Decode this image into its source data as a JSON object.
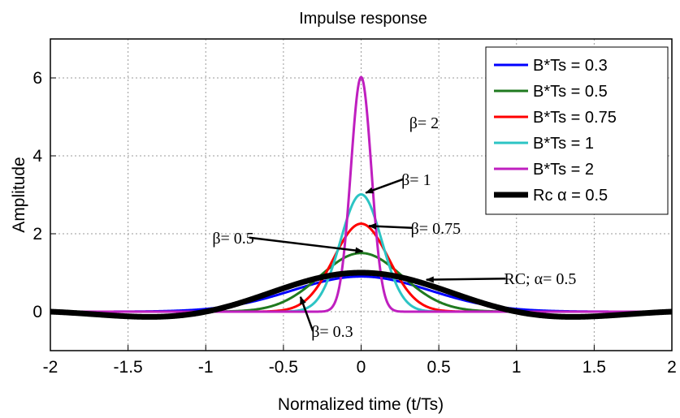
{
  "chart_data": {
    "type": "line",
    "title": "Impulse response",
    "xlabel": "Normalized time (t/Ts)",
    "ylabel": "Amplitude",
    "xlim": [
      -2,
      2
    ],
    "ylim": [
      -1,
      7
    ],
    "xticks": [
      -2,
      -1.5,
      -1,
      -0.5,
      0,
      0.5,
      1,
      1.5,
      2
    ],
    "xtick_labels": [
      "-2",
      "-1.5",
      "-1",
      "-0.5",
      "0",
      "0.5",
      "1",
      "1.5",
      "2"
    ],
    "yticks": [
      0,
      2,
      4,
      6
    ],
    "ytick_labels": [
      "0",
      "2",
      "4",
      "6"
    ],
    "grid": true,
    "legend_position": "top-right",
    "series": [
      {
        "name": "B*Ts = 0.3",
        "color": "#0000ff",
        "kind": "gaussian",
        "bts": 0.3,
        "width": 3
      },
      {
        "name": "B*Ts = 0.5",
        "color": "#1f7a1f",
        "kind": "gaussian",
        "bts": 0.5,
        "width": 3
      },
      {
        "name": "B*Ts = 0.75",
        "color": "#ff0000",
        "kind": "gaussian",
        "bts": 0.75,
        "width": 3
      },
      {
        "name": "B*Ts = 1",
        "color": "#2cc4c4",
        "kind": "gaussian",
        "bts": 1,
        "width": 3
      },
      {
        "name": "B*Ts = 2",
        "color": "#bf1fbf",
        "kind": "gaussian",
        "bts": 2,
        "width": 3
      },
      {
        "name": "Rc α = 0.5",
        "color": "#000000",
        "kind": "raised-cosine",
        "alpha": 0.5,
        "width": 7
      }
    ],
    "annotations": [
      {
        "text": "β= 2",
        "x": 0.32,
        "y": 4.85,
        "arrow": false
      },
      {
        "text": "β= 1",
        "x": 0.27,
        "y": 3.4,
        "arrow": true,
        "ax": 0.03,
        "ay": 3.05
      },
      {
        "text": "β= 0.75",
        "x": 0.33,
        "y": 2.15,
        "arrow": true,
        "ax": 0.05,
        "ay": 2.2
      },
      {
        "text": "β= 0.5",
        "x": -0.72,
        "y": 1.9,
        "arrow": true,
        "ax": 0.01,
        "ay": 1.55
      },
      {
        "text": "RC; α= 0.5",
        "x": 0.93,
        "y": 0.85,
        "arrow": true,
        "ax": 0.42,
        "ay": 0.82
      },
      {
        "text": "β= 0.3",
        "x": -0.31,
        "y": -0.5,
        "arrow": true,
        "ax": -0.39,
        "ay": 0.38
      }
    ]
  }
}
